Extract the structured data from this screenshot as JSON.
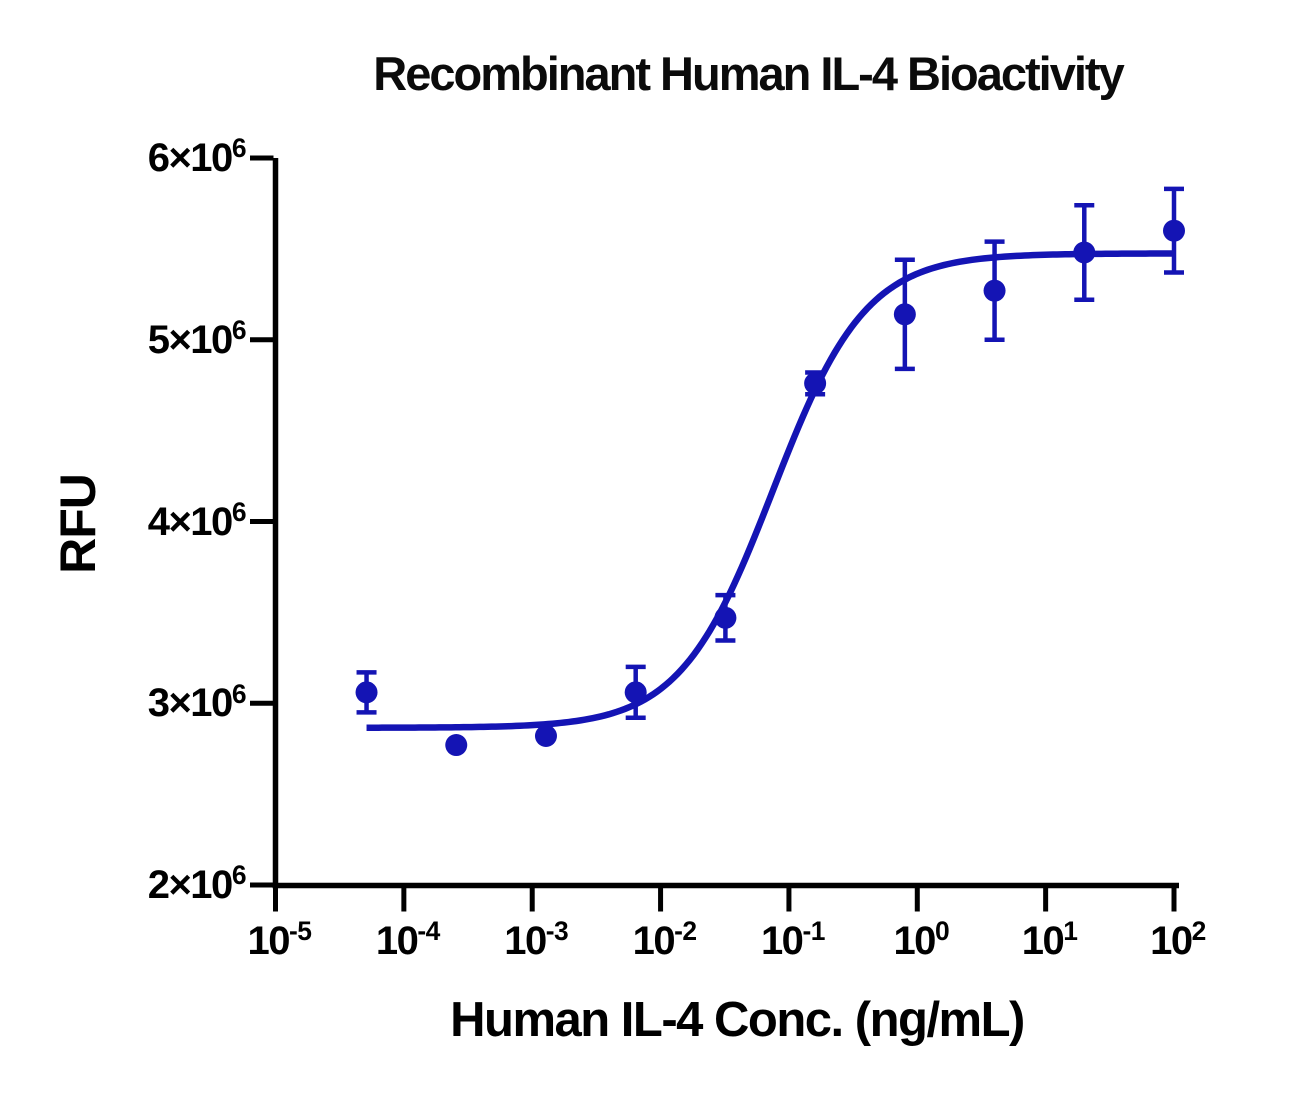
{
  "figure": {
    "title": "Recombinant Human IL-4 Bioactivity",
    "x_axis_label": "Human IL-4 Conc. (ng/mL)",
    "y_axis_label": "RFU",
    "background_color": "#ffffff"
  },
  "chart_data": {
    "type": "scatter",
    "subtype": "dose-response-curve",
    "title": "Recombinant Human IL-4 Bioactivity",
    "xlabel": "Human IL-4 Conc. (ng/mL)",
    "ylabel": "RFU",
    "x_scale": "log10",
    "grid": false,
    "legend": false,
    "axis_color": "#000000",
    "x_axis": {
      "log_min": -5,
      "log_max": 2,
      "ticks": [
        {
          "base": "10",
          "exp": "-5",
          "value": 1e-05
        },
        {
          "base": "10",
          "exp": "-4",
          "value": 0.0001
        },
        {
          "base": "10",
          "exp": "-3",
          "value": 0.001
        },
        {
          "base": "10",
          "exp": "-2",
          "value": 0.01
        },
        {
          "base": "10",
          "exp": "-1",
          "value": 0.1
        },
        {
          "base": "10",
          "exp": "0",
          "value": 1
        },
        {
          "base": "10",
          "exp": "1",
          "value": 10
        },
        {
          "base": "10",
          "exp": "2",
          "value": 100
        }
      ]
    },
    "y_axis": {
      "min": 2000000,
      "max": 6000000,
      "ticks": [
        {
          "base": "2×10",
          "exp": "6",
          "value": 2000000
        },
        {
          "base": "3×10",
          "exp": "6",
          "value": 3000000
        },
        {
          "base": "4×10",
          "exp": "6",
          "value": 4000000
        },
        {
          "base": "5×10",
          "exp": "6",
          "value": 5000000
        },
        {
          "base": "6×10",
          "exp": "6",
          "value": 6000000
        }
      ]
    },
    "series": [
      {
        "name": "Human IL-4",
        "marker": "circle",
        "color": "#1414b4",
        "x_ng_ml": [
          5.12e-05,
          0.000256,
          0.00128,
          0.0064,
          0.032,
          0.16,
          0.8,
          4,
          20,
          100
        ],
        "y_rfu": [
          3060000,
          2770000,
          2820000,
          3060000,
          3470000,
          4760000,
          5140000,
          5270000,
          5480000,
          5600000
        ],
        "y_err_rfu": [
          110000,
          0,
          0,
          140000,
          125000,
          60000,
          300000,
          270000,
          260000,
          230000
        ]
      }
    ],
    "fit_curve": {
      "model": "four_parameter_logistic",
      "bottom_rfu": 2865000,
      "top_rfu": 5475000,
      "ec50_ng_ml": 0.075,
      "hill_slope": 1.2,
      "x_range_ng_ml": [
        5.12e-05,
        100
      ]
    }
  }
}
